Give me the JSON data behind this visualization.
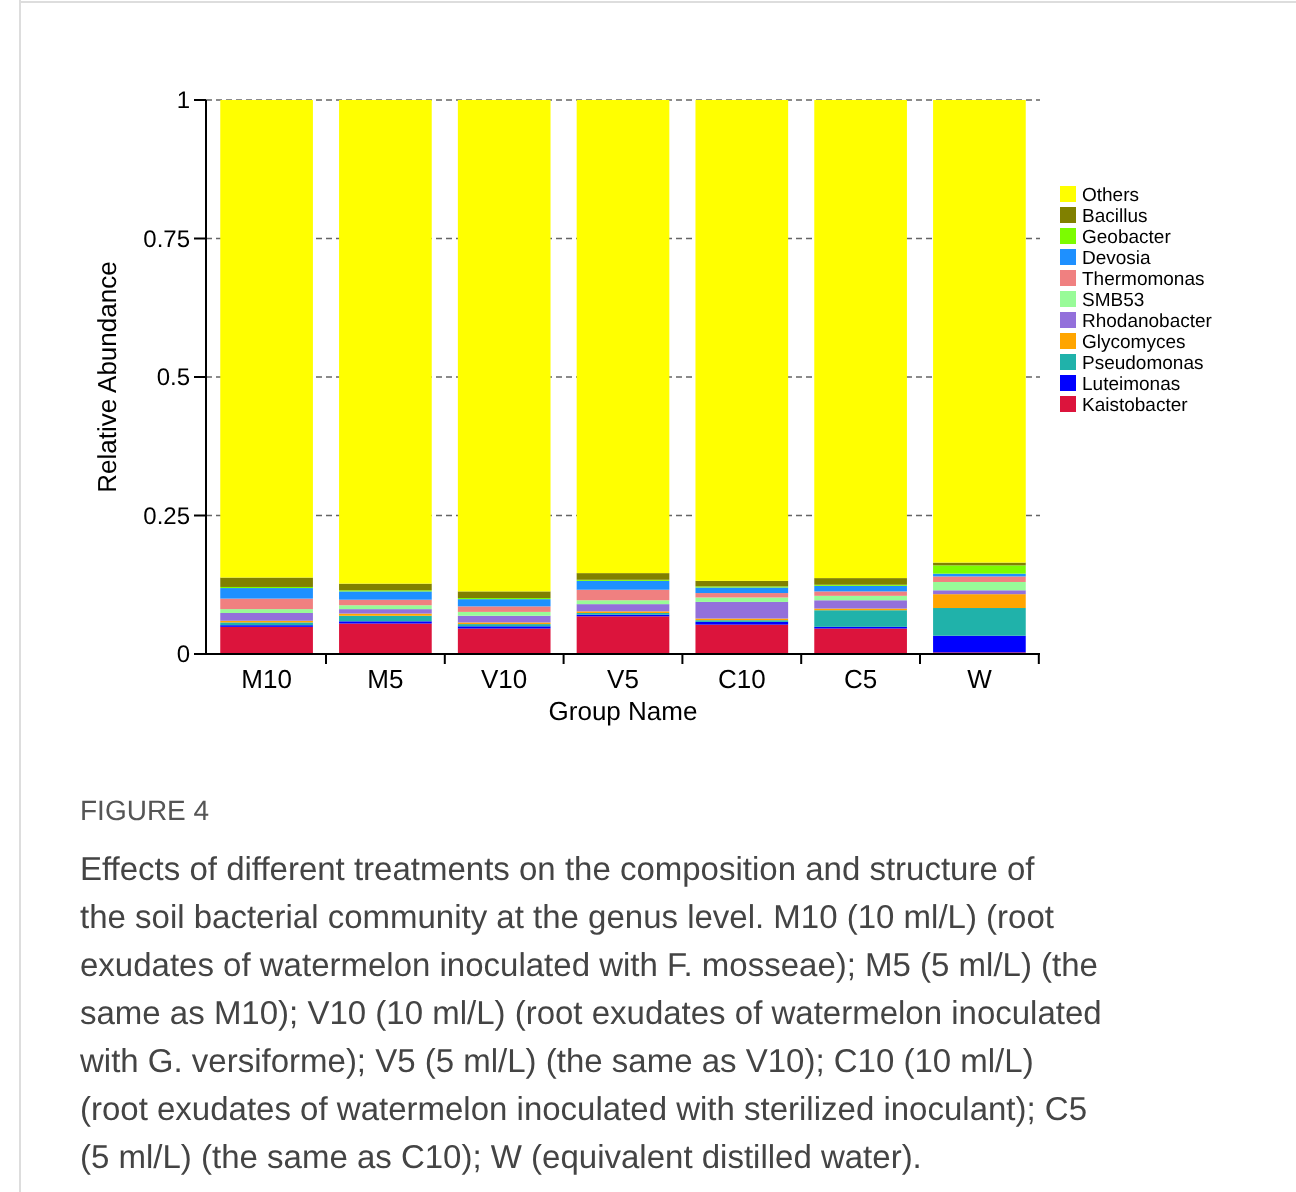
{
  "chart_data": {
    "type": "bar",
    "stacked": true,
    "xlabel": "Group Name",
    "ylabel": "Relative Abundance",
    "categories": [
      "M10",
      "M5",
      "V10",
      "V5",
      "C10",
      "C5",
      "W"
    ],
    "ylim": [
      0,
      1
    ],
    "yticks": [
      0,
      0.25,
      0.5,
      0.75,
      1
    ],
    "grid": "y",
    "legend": "right",
    "series": [
      {
        "name": "Kaistobacter",
        "color": "#dc143c",
        "values": [
          0.049,
          0.055,
          0.046,
          0.068,
          0.053,
          0.046,
          0.003
        ]
      },
      {
        "name": "Luteimonas",
        "color": "#0000ff",
        "values": [
          0.003,
          0.004,
          0.004,
          0.003,
          0.005,
          0.003,
          0.03
        ]
      },
      {
        "name": "Pseudomonas",
        "color": "#20b2aa",
        "values": [
          0.005,
          0.01,
          0.004,
          0.003,
          0.003,
          0.03,
          0.05
        ]
      },
      {
        "name": "Glycomyces",
        "color": "#ffa500",
        "values": [
          0.003,
          0.004,
          0.003,
          0.003,
          0.003,
          0.003,
          0.025
        ]
      },
      {
        "name": "Rhodanobacter",
        "color": "#9370db",
        "values": [
          0.014,
          0.008,
          0.012,
          0.013,
          0.03,
          0.015,
          0.007
        ]
      },
      {
        "name": "SMB53",
        "color": "#98fb98",
        "values": [
          0.007,
          0.007,
          0.007,
          0.007,
          0.008,
          0.008,
          0.015
        ]
      },
      {
        "name": "Thermomonas",
        "color": "#f08080",
        "values": [
          0.019,
          0.01,
          0.01,
          0.019,
          0.008,
          0.008,
          0.01
        ]
      },
      {
        "name": "Devosia",
        "color": "#1e90ff",
        "values": [
          0.019,
          0.015,
          0.013,
          0.016,
          0.01,
          0.01,
          0.005
        ]
      },
      {
        "name": "Geobacter",
        "color": "#7cfc00",
        "values": [
          0.002,
          0.002,
          0.002,
          0.002,
          0.002,
          0.002,
          0.015
        ]
      },
      {
        "name": "Bacillus",
        "color": "#808000",
        "values": [
          0.017,
          0.012,
          0.012,
          0.012,
          0.01,
          0.012,
          0.005
        ]
      },
      {
        "name": "Others",
        "color": "#ffff00",
        "values": [
          0.862,
          0.873,
          0.887,
          0.854,
          0.868,
          0.863,
          0.835
        ]
      }
    ],
    "annotations": [
      "FIGURE 4",
      "Effects of different treatments on the composition and structure of the soil bacterial community at the genus level. M10 (10 ml/L) (root exudates of watermelon inoculated with F. mosseae); M5 (5 ml/L) (the same as M10); V10 (10 ml/L) (root exudates of watermelon inoculated with G. versiforme); V5 (5 ml/L) (the same as V10); C10 (10 ml/L) (root exudates of watermelon inoculated with sterilized inoculant); C5 (5 ml/L) (the same as C10); W (equivalent distilled water)."
    ]
  }
}
